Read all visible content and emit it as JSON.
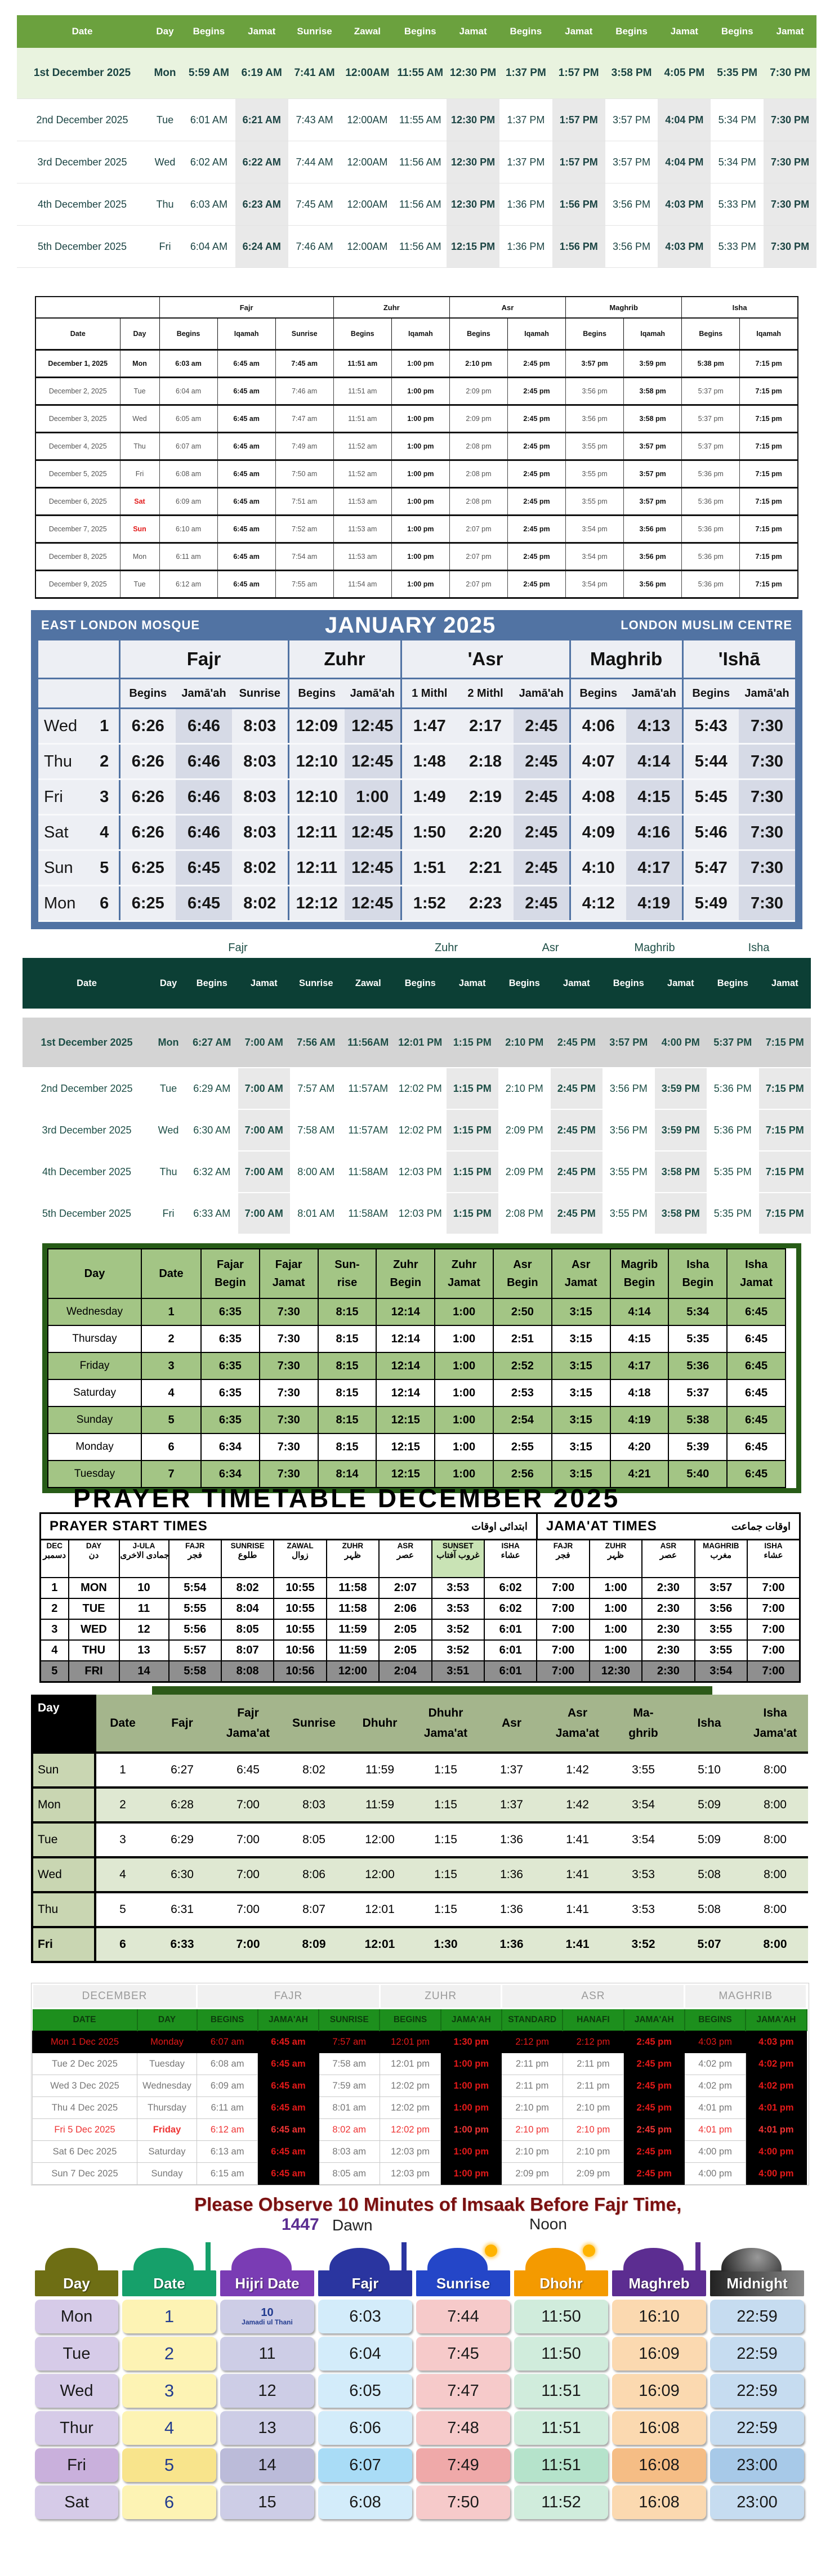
{
  "t1": {
    "headers": [
      "Date",
      "Day",
      "Begins",
      "Jamat",
      "Sunrise",
      "Zawal",
      "Begins",
      "Jamat",
      "Begins",
      "Jamat",
      "Begins",
      "Jamat",
      "Begins",
      "Jamat"
    ],
    "rows": [
      [
        "1st December 2025",
        "Mon",
        "5:59 AM",
        "6:19 AM",
        "7:41 AM",
        "12:00AM",
        "11:55 AM",
        "12:30 PM",
        "1:37 PM",
        "1:57 PM",
        "3:58 PM",
        "4:05 PM",
        "5:35 PM",
        "7:30 PM"
      ],
      [
        "2nd December 2025",
        "Tue",
        "6:01 AM",
        "6:21 AM",
        "7:43 AM",
        "12:00AM",
        "11:55 AM",
        "12:30 PM",
        "1:37 PM",
        "1:57 PM",
        "3:57 PM",
        "4:04 PM",
        "5:34 PM",
        "7:30 PM"
      ],
      [
        "3rd December 2025",
        "Wed",
        "6:02 AM",
        "6:22 AM",
        "7:44 AM",
        "12:00AM",
        "11:56 AM",
        "12:30 PM",
        "1:37 PM",
        "1:57 PM",
        "3:57 PM",
        "4:04 PM",
        "5:34 PM",
        "7:30 PM"
      ],
      [
        "4th December 2025",
        "Thu",
        "6:03 AM",
        "6:23 AM",
        "7:45 AM",
        "12:00AM",
        "11:56 AM",
        "12:30 PM",
        "1:36 PM",
        "1:56 PM",
        "3:56 PM",
        "4:03 PM",
        "5:33 PM",
        "7:30 PM"
      ],
      [
        "5th December 2025",
        "Fri",
        "6:04 AM",
        "6:24 AM",
        "7:46 AM",
        "12:00AM",
        "11:56 AM",
        "12:15 PM",
        "1:36 PM",
        "1:56 PM",
        "3:56 PM",
        "4:03 PM",
        "5:33 PM",
        "7:30 PM"
      ]
    ]
  },
  "t2": {
    "groups": [
      "Fajr",
      "Zuhr",
      "Asr",
      "Maghrib",
      "Isha"
    ],
    "headers": [
      "Date",
      "Day",
      "Begins",
      "Iqamah",
      "Sunrise",
      "Begins",
      "Iqamah",
      "Begins",
      "Iqamah",
      "Begins",
      "Iqamah",
      "Begins",
      "Iqamah"
    ],
    "rows": [
      [
        "December 1, 2025",
        "Mon",
        "6:03 am",
        "6:45 am",
        "7:45 am",
        "11:51 am",
        "1:00 pm",
        "2:10 pm",
        "2:45 pm",
        "3:57 pm",
        "3:59 pm",
        "5:38 pm",
        "7:15 pm"
      ],
      [
        "December 2, 2025",
        "Tue",
        "6:04 am",
        "6:45 am",
        "7:46 am",
        "11:51 am",
        "1:00 pm",
        "2:09 pm",
        "2:45 pm",
        "3:56 pm",
        "3:58 pm",
        "5:37 pm",
        "7:15 pm"
      ],
      [
        "December 3, 2025",
        "Wed",
        "6:05 am",
        "6:45 am",
        "7:47 am",
        "11:51 am",
        "1:00 pm",
        "2:09 pm",
        "2:45 pm",
        "3:56 pm",
        "3:58 pm",
        "5:37 pm",
        "7:15 pm"
      ],
      [
        "December 4, 2025",
        "Thu",
        "6:07 am",
        "6:45 am",
        "7:49 am",
        "11:52 am",
        "1:00 pm",
        "2:08 pm",
        "2:45 pm",
        "3:55 pm",
        "3:57 pm",
        "5:37 pm",
        "7:15 pm"
      ],
      [
        "December 5, 2025",
        "Fri",
        "6:08 am",
        "6:45 am",
        "7:50 am",
        "11:52 am",
        "1:00 pm",
        "2:08 pm",
        "2:45 pm",
        "3:55 pm",
        "3:57 pm",
        "5:36 pm",
        "7:15 pm"
      ],
      [
        "December 6, 2025",
        "Sat",
        "6:09 am",
        "6:45 am",
        "7:51 am",
        "11:53 am",
        "1:00 pm",
        "2:08 pm",
        "2:45 pm",
        "3:55 pm",
        "3:57 pm",
        "5:36 pm",
        "7:15 pm"
      ],
      [
        "December 7, 2025",
        "Sun",
        "6:10 am",
        "6:45 am",
        "7:52 am",
        "11:53 am",
        "1:00 pm",
        "2:07 pm",
        "2:45 pm",
        "3:54 pm",
        "3:56 pm",
        "5:36 pm",
        "7:15 pm"
      ],
      [
        "December 8, 2025",
        "Mon",
        "6:11 am",
        "6:45 am",
        "7:54 am",
        "11:53 am",
        "1:00 pm",
        "2:07 pm",
        "2:45 pm",
        "3:54 pm",
        "3:56 pm",
        "5:36 pm",
        "7:15 pm"
      ],
      [
        "December 9, 2025",
        "Tue",
        "6:12 am",
        "6:45 am",
        "7:55 am",
        "11:54 am",
        "1:00 pm",
        "2:07 pm",
        "2:45 pm",
        "3:54 pm",
        "3:56 pm",
        "5:36 pm",
        "7:15 pm"
      ]
    ]
  },
  "t3": {
    "title_left": "EAST LONDON MOSQUE",
    "title_center": "JANUARY 2025",
    "title_right": "LONDON MUSLIM CENTRE",
    "groups": [
      "Fajr",
      "Zuhr",
      "'Asr",
      "Maghrib",
      "'Ishā"
    ],
    "headers": [
      "Begins",
      "Jamā'ah",
      "Sunrise",
      "Begins",
      "Jamā'ah",
      "1 Mithl",
      "2 Mithl",
      "Jamā'ah",
      "Begins",
      "Jamā'ah",
      "Begins",
      "Jamā'ah"
    ],
    "rows": [
      [
        "Wed",
        "1",
        "6:26",
        "6:46",
        "8:03",
        "12:09",
        "12:45",
        "1:47",
        "2:17",
        "2:45",
        "4:06",
        "4:13",
        "5:43",
        "7:30"
      ],
      [
        "Thu",
        "2",
        "6:26",
        "6:46",
        "8:03",
        "12:10",
        "12:45",
        "1:48",
        "2:18",
        "2:45",
        "4:07",
        "4:14",
        "5:44",
        "7:30"
      ],
      [
        "Fri",
        "3",
        "6:26",
        "6:46",
        "8:03",
        "12:10",
        "1:00",
        "1:49",
        "2:19",
        "2:45",
        "4:08",
        "4:15",
        "5:45",
        "7:30"
      ],
      [
        "Sat",
        "4",
        "6:26",
        "6:46",
        "8:03",
        "12:11",
        "12:45",
        "1:50",
        "2:20",
        "2:45",
        "4:09",
        "4:16",
        "5:46",
        "7:30"
      ],
      [
        "Sun",
        "5",
        "6:25",
        "6:45",
        "8:02",
        "12:11",
        "12:45",
        "1:51",
        "2:21",
        "2:45",
        "4:10",
        "4:17",
        "5:47",
        "7:30"
      ],
      [
        "Mon",
        "6",
        "6:25",
        "6:45",
        "8:02",
        "12:12",
        "12:45",
        "1:52",
        "2:23",
        "2:45",
        "4:12",
        "4:19",
        "5:49",
        "7:30"
      ]
    ]
  },
  "t4": {
    "groups": [
      "Fajr",
      "Zuhr",
      "Asr",
      "Maghrib",
      "Isha"
    ],
    "headers": [
      "Date",
      "Day",
      "Begins",
      "Jamat",
      "Sunrise",
      "Zawal",
      "Begins",
      "Jamat",
      "Begins",
      "Jamat",
      "Begins",
      "Jamat",
      "Begins",
      "Jamat"
    ],
    "rows": [
      [
        "1st December 2025",
        "Mon",
        "6:27 AM",
        "7:00 AM",
        "7:56 AM",
        "11:56AM",
        "12:01 PM",
        "1:15 PM",
        "2:10 PM",
        "2:45 PM",
        "3:57 PM",
        "4:00 PM",
        "5:37 PM",
        "7:15 PM"
      ],
      [
        "2nd December 2025",
        "Tue",
        "6:29 AM",
        "7:00 AM",
        "7:57 AM",
        "11:57AM",
        "12:02 PM",
        "1:15 PM",
        "2:10 PM",
        "2:45 PM",
        "3:56 PM",
        "3:59 PM",
        "5:36 PM",
        "7:15 PM"
      ],
      [
        "3rd December 2025",
        "Wed",
        "6:30 AM",
        "7:00 AM",
        "7:58 AM",
        "11:57AM",
        "12:02 PM",
        "1:15 PM",
        "2:09 PM",
        "2:45 PM",
        "3:56 PM",
        "3:59 PM",
        "5:36 PM",
        "7:15 PM"
      ],
      [
        "4th December 2025",
        "Thu",
        "6:32 AM",
        "7:00 AM",
        "8:00 AM",
        "11:58AM",
        "12:03 PM",
        "1:15 PM",
        "2:09 PM",
        "2:45 PM",
        "3:55 PM",
        "3:58 PM",
        "5:35 PM",
        "7:15 PM"
      ],
      [
        "5th December 2025",
        "Fri",
        "6:33 AM",
        "7:00 AM",
        "8:01 AM",
        "11:58AM",
        "12:03 PM",
        "1:15 PM",
        "2:08 PM",
        "2:45 PM",
        "3:55 PM",
        "3:58 PM",
        "5:35 PM",
        "7:15 PM"
      ]
    ]
  },
  "t5": {
    "headers": [
      [
        "Day",
        ""
      ],
      [
        "Date",
        ""
      ],
      [
        "Fajar",
        "Begin"
      ],
      [
        "Fajar",
        "Jamat"
      ],
      [
        "Sun-",
        "rise"
      ],
      [
        "Zuhr",
        "Begin"
      ],
      [
        "Zuhr",
        "Jamat"
      ],
      [
        "Asr",
        "Begin"
      ],
      [
        "Asr",
        "Jamat"
      ],
      [
        "Magrib",
        "Begin"
      ],
      [
        "Isha",
        "Begin"
      ],
      [
        "Isha",
        "Jamat"
      ]
    ],
    "rows": [
      [
        "Wednesday",
        "1",
        "6:35",
        "7:30",
        "8:15",
        "12:14",
        "1:00",
        "2:50",
        "3:15",
        "4:14",
        "5:34",
        "6:45"
      ],
      [
        "Thursday",
        "2",
        "6:35",
        "7:30",
        "8:15",
        "12:14",
        "1:00",
        "2:51",
        "3:15",
        "4:15",
        "5:35",
        "6:45"
      ],
      [
        "Friday",
        "3",
        "6:35",
        "7:30",
        "8:15",
        "12:14",
        "1:00",
        "2:52",
        "3:15",
        "4:17",
        "5:36",
        "6:45"
      ],
      [
        "Saturday",
        "4",
        "6:35",
        "7:30",
        "8:15",
        "12:14",
        "1:00",
        "2:53",
        "3:15",
        "4:18",
        "5:37",
        "6:45"
      ],
      [
        "Sunday",
        "5",
        "6:35",
        "7:30",
        "8:15",
        "12:15",
        "1:00",
        "2:54",
        "3:15",
        "4:19",
        "5:38",
        "6:45"
      ],
      [
        "Monday",
        "6",
        "6:34",
        "7:30",
        "8:15",
        "12:15",
        "1:00",
        "2:55",
        "3:15",
        "4:20",
        "5:39",
        "6:45"
      ],
      [
        "Tuesday",
        "7",
        "6:34",
        "7:30",
        "8:14",
        "12:15",
        "1:00",
        "2:56",
        "3:15",
        "4:21",
        "5:40",
        "6:45"
      ]
    ]
  },
  "t6": {
    "title": "PRAYER TIMETABLE DECEMBER 2025",
    "left_header": "PRAYER START TIMES",
    "left_arabic": "ابتدائی اوقات",
    "right_header": "JAMA'AT TIMES",
    "right_arabic": "اوقات جماعت",
    "headers": [
      {
        "en": "DEC",
        "ar": "دسمبر"
      },
      {
        "en": "DAY",
        "ar": "دن"
      },
      {
        "en": "J-ULA",
        "ar": "جمادی الاخری"
      },
      {
        "en": "FAJR",
        "ar": "فجر"
      },
      {
        "en": "SUNRISE",
        "ar": "طلوع"
      },
      {
        "en": "ZAWAL",
        "ar": "زوال"
      },
      {
        "en": "ZUHR",
        "ar": "ظہر"
      },
      {
        "en": "ASR",
        "ar": "عصر"
      },
      {
        "en": "SUNSET",
        "ar": "غروب آفتاب"
      },
      {
        "en": "ISHA",
        "ar": "عشاء"
      },
      {
        "en": "FAJR",
        "ar": "فجر"
      },
      {
        "en": "ZUHR",
        "ar": "ظہر"
      },
      {
        "en": "ASR",
        "ar": "عصر"
      },
      {
        "en": "MAGHRIB",
        "ar": "مغرب"
      },
      {
        "en": "ISHA",
        "ar": "عشاء"
      }
    ],
    "rows": [
      [
        "1",
        "MON",
        "10",
        "5:54",
        "8:02",
        "10:55",
        "11:58",
        "2:07",
        "3:53",
        "6:02",
        "7:00",
        "1:00",
        "2:30",
        "3:57",
        "7:00"
      ],
      [
        "2",
        "TUE",
        "11",
        "5:55",
        "8:04",
        "10:55",
        "11:58",
        "2:06",
        "3:53",
        "6:02",
        "7:00",
        "1:00",
        "2:30",
        "3:56",
        "7:00"
      ],
      [
        "3",
        "WED",
        "12",
        "5:56",
        "8:05",
        "10:55",
        "11:59",
        "2:05",
        "3:52",
        "6:01",
        "7:00",
        "1:00",
        "2:30",
        "3:55",
        "7:00"
      ],
      [
        "4",
        "THU",
        "13",
        "5:57",
        "8:07",
        "10:56",
        "11:59",
        "2:05",
        "3:52",
        "6:01",
        "7:00",
        "1:00",
        "2:30",
        "3:55",
        "7:00"
      ],
      [
        "5",
        "FRI",
        "14",
        "5:58",
        "8:08",
        "10:56",
        "12:00",
        "2:04",
        "3:51",
        "6:01",
        "7:00",
        "12:30",
        "2:30",
        "3:54",
        "7:00"
      ]
    ]
  },
  "t7": {
    "headers": [
      [
        "Day",
        ""
      ],
      [
        "Date",
        ""
      ],
      [
        "Fajr",
        ""
      ],
      [
        "Fajr",
        "Jama'at"
      ],
      [
        "Sunrise",
        ""
      ],
      [
        "Dhuhr",
        ""
      ],
      [
        "Dhuhr",
        "Jama'at"
      ],
      [
        "Asr",
        ""
      ],
      [
        "Asr",
        "Jama'at"
      ],
      [
        "Ma-",
        "ghrib"
      ],
      [
        "Isha",
        ""
      ],
      [
        "Isha",
        "Jama'at"
      ]
    ],
    "rows": [
      [
        "Sun",
        "1",
        "6:27",
        "6:45",
        "8:02",
        "11:59",
        "1:15",
        "1:37",
        "1:42",
        "3:55",
        "5:10",
        "8:00"
      ],
      [
        "Mon",
        "2",
        "6:28",
        "7:00",
        "8:03",
        "11:59",
        "1:15",
        "1:37",
        "1:42",
        "3:54",
        "5:09",
        "8:00"
      ],
      [
        "Tue",
        "3",
        "6:29",
        "7:00",
        "8:05",
        "12:00",
        "1:15",
        "1:36",
        "1:41",
        "3:54",
        "5:09",
        "8:00"
      ],
      [
        "Wed",
        "4",
        "6:30",
        "7:00",
        "8:06",
        "12:00",
        "1:15",
        "1:36",
        "1:41",
        "3:53",
        "5:08",
        "8:00"
      ],
      [
        "Thu",
        "5",
        "6:31",
        "7:00",
        "8:07",
        "12:01",
        "1:15",
        "1:36",
        "1:41",
        "3:53",
        "5:08",
        "8:00"
      ],
      [
        "Fri",
        "6",
        "6:33",
        "7:00",
        "8:09",
        "12:01",
        "1:30",
        "1:36",
        "1:41",
        "3:52",
        "5:07",
        "8:00"
      ]
    ]
  },
  "t8": {
    "groups": [
      "DECEMBER",
      "FAJR",
      "ZUHR",
      "ASR",
      "MAGHRIB"
    ],
    "headers": [
      "DATE",
      "DAY",
      "BEGINS",
      "JAMA'AH",
      "SUNRISE",
      "BEGINS",
      "JAMA'AH",
      "STANDARD",
      "HANAFI",
      "JAMA'AH",
      "BEGINS",
      "JAMA'AH"
    ],
    "rows": [
      [
        "Mon 1 Dec 2025",
        "Monday",
        "6:07 am",
        "6:45 am",
        "7:57 am",
        "12:01 pm",
        "1:30 pm",
        "2:12 pm",
        "2:12 pm",
        "2:45 pm",
        "4:03 pm",
        "4:03 pm"
      ],
      [
        "Tue 2 Dec 2025",
        "Tuesday",
        "6:08 am",
        "6:45 am",
        "7:58 am",
        "12:01 pm",
        "1:00 pm",
        "2:11 pm",
        "2:11 pm",
        "2:45 pm",
        "4:02 pm",
        "4:02 pm"
      ],
      [
        "Wed 3 Dec 2025",
        "Wednesday",
        "6:09 am",
        "6:45 am",
        "7:59 am",
        "12:02 pm",
        "1:00 pm",
        "2:11 pm",
        "2:11 pm",
        "2:45 pm",
        "4:02 pm",
        "4:02 pm"
      ],
      [
        "Thu 4 Dec 2025",
        "Thursday",
        "6:11 am",
        "6:45 am",
        "8:01 am",
        "12:02 pm",
        "1:00 pm",
        "2:10 pm",
        "2:10 pm",
        "2:45 pm",
        "4:01 pm",
        "4:01 pm"
      ],
      [
        "Fri 5 Dec 2025",
        "Friday",
        "6:12 am",
        "6:45 am",
        "8:02 am",
        "12:02 pm",
        "1:00 pm",
        "2:10 pm",
        "2:10 pm",
        "2:45 pm",
        "4:01 pm",
        "4:01 pm"
      ],
      [
        "Sat 6 Dec 2025",
        "Saturday",
        "6:13 am",
        "6:45 am",
        "8:03 am",
        "12:03 pm",
        "1:00 pm",
        "2:10 pm",
        "2:10 pm",
        "2:45 pm",
        "4:00 pm",
        "4:00 pm"
      ],
      [
        "Sun 7 Dec 2025",
        "Sunday",
        "6:15 am",
        "6:45 am",
        "8:05 am",
        "12:03 pm",
        "1:00 pm",
        "2:09 pm",
        "2:09 pm",
        "2:45 pm",
        "4:00 pm",
        "4:00 pm"
      ]
    ]
  },
  "t9": {
    "title": "Please Observe 10 Minutes of Imsaak Before Fajr Time,",
    "year": "1447",
    "dawn": "Dawn",
    "noon": "Noon",
    "hijri_month": "Jamadi ul Thani",
    "headers": [
      "Day",
      "Date",
      "Hijri Date",
      "Fajr",
      "Sunrise",
      "Dhohr",
      "Maghreb",
      "Midnight"
    ],
    "header_colors": [
      "#6e6e14",
      "#16a06a",
      "#7a3cb4",
      "#2a35a0",
      "#2446c8",
      "#f49a00",
      "#5c2d91",
      "#555555"
    ],
    "rows": [
      [
        "Mon",
        "1",
        "10",
        "6:03",
        "7:44",
        "11:50",
        "16:10",
        "22:59"
      ],
      [
        "Tue",
        "2",
        "11",
        "6:04",
        "7:45",
        "11:50",
        "16:09",
        "22:59"
      ],
      [
        "Wed",
        "3",
        "12",
        "6:05",
        "7:47",
        "11:51",
        "16:09",
        "22:59"
      ],
      [
        "Thur",
        "4",
        "13",
        "6:06",
        "7:48",
        "11:51",
        "16:08",
        "22:59"
      ],
      [
        "Fri",
        "5",
        "14",
        "6:07",
        "7:49",
        "11:51",
        "16:08",
        "23:00"
      ],
      [
        "Sat",
        "6",
        "15",
        "6:08",
        "7:50",
        "11:52",
        "16:08",
        "23:00"
      ]
    ]
  }
}
